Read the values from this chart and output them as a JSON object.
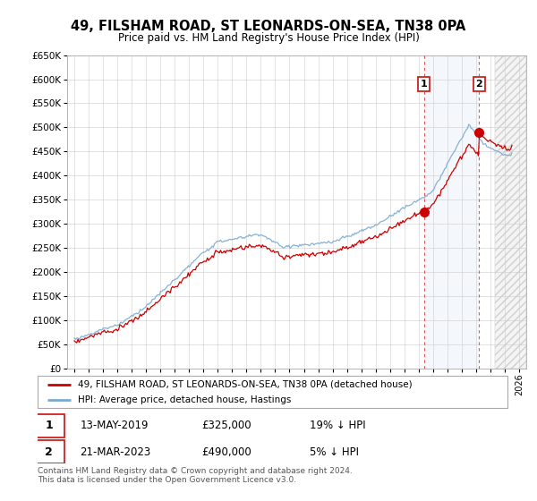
{
  "title": "49, FILSHAM ROAD, ST LEONARDS-ON-SEA, TN38 0PA",
  "subtitle": "Price paid vs. HM Land Registry's House Price Index (HPI)",
  "legend_line1": "49, FILSHAM ROAD, ST LEONARDS-ON-SEA, TN38 0PA (detached house)",
  "legend_line2": "HPI: Average price, detached house, Hastings",
  "transaction1_date": "13-MAY-2019",
  "transaction1_price": "£325,000",
  "transaction1_hpi": "19% ↓ HPI",
  "transaction2_date": "21-MAR-2023",
  "transaction2_price": "£490,000",
  "transaction2_hpi": "5% ↓ HPI",
  "footnote": "Contains HM Land Registry data © Crown copyright and database right 2024.\nThis data is licensed under the Open Government Licence v3.0.",
  "hpi_color": "#7aaad0",
  "price_color": "#cc0000",
  "marker1_year": 2019.37,
  "marker2_year": 2023.22,
  "ylim_min": 0,
  "ylim_max": 650000,
  "xlim_min": 1994.5,
  "xlim_max": 2026.5,
  "background_color": "#ffffff",
  "grid_color": "#cccccc",
  "hatch_start": 2024.3
}
